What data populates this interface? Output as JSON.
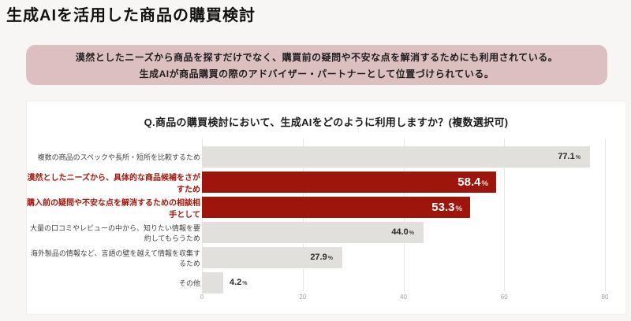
{
  "page": {
    "title": "生成AIを活用した商品の購買検討",
    "summary_box": {
      "line1": "漠然としたニーズから商品を探すだけでなく、購買前の疑問や不安な点を解消するためにも利用されている。",
      "line2": "生成AIが商品購買の際のアドバイザー・パートナーとして位置づけられている。"
    }
  },
  "chart_data": {
    "type": "bar",
    "orientation": "horizontal",
    "title": "Q.商品の購買検討において、生成AIをどのように利用しますか？(複数選択可)",
    "unit": "%",
    "categories": [
      "複数の商品のスペックや長所・短所を比較するため",
      "漠然としたニーズから、具体的な商品候補をさがすため",
      "購入前の疑問や不安な点を解消するための相談相手として",
      "大量の口コミやレビューの中から、知りたい情報を要約してもらうため",
      "海外製品の情報など、言語の壁を越えて情報を収集するため",
      "その他"
    ],
    "values": [
      77.1,
      58.4,
      53.3,
      44.0,
      27.9,
      4.2
    ],
    "value_labels": [
      "77.1",
      "58.4",
      "53.3",
      "44.0",
      "27.9",
      "4.2"
    ],
    "highlighted": [
      false,
      true,
      true,
      false,
      false,
      false
    ],
    "xlim": [
      0,
      80
    ],
    "xticks": [
      0,
      20,
      40,
      60,
      80
    ],
    "xtick_labels": [
      "0",
      "20",
      "40",
      "60",
      "80"
    ],
    "grid": true,
    "legend": "none",
    "colors": {
      "bar_default": "#e2e0dd",
      "bar_highlight": "#9e150b",
      "label_highlight": "#a5160a",
      "summary_bg": "#dcc0c0",
      "card_bg": "#ffffff",
      "page_bg": "#f7f6f4"
    }
  }
}
